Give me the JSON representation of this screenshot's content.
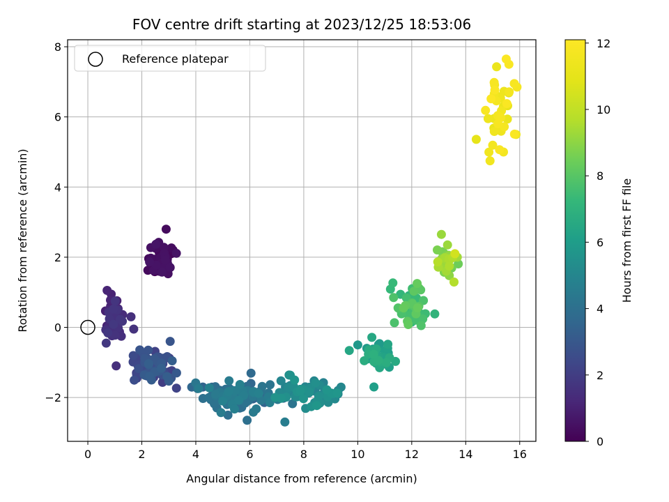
{
  "chart_data": {
    "type": "scatter",
    "title": "FOV centre drift starting at 2023/12/25 18:53:06",
    "xlabel": "Angular distance from reference (arcmin)",
    "ylabel": "Rotation from reference (arcmin)",
    "colorbar_label": "Hours from first FF file",
    "xlim": [
      -0.75,
      16.6
    ],
    "ylim": [
      -3.25,
      8.2
    ],
    "clim": [
      0,
      12.1
    ],
    "xticks": [
      "0",
      "2",
      "4",
      "6",
      "8",
      "10",
      "12",
      "14",
      "16"
    ],
    "yticks": [
      "−2",
      "0",
      "2",
      "4",
      "6",
      "8"
    ],
    "colorbar_ticks": [
      "0",
      "2",
      "4",
      "6",
      "8",
      "10",
      "12"
    ],
    "grid": true,
    "colormap": "viridis",
    "legend": {
      "position": "top-left",
      "entries": [
        "Reference platepar"
      ]
    },
    "reference_point": {
      "x": 0,
      "y": 0
    },
    "clusters": [
      {
        "x": 2.7,
        "y": 1.9,
        "sx": 0.4,
        "sy": 0.35,
        "n": 60,
        "t0": 0.1,
        "t1": 0.6
      },
      {
        "x": 0.9,
        "y": 0.2,
        "sx": 0.3,
        "sy": 0.45,
        "n": 45,
        "t0": 0.9,
        "t1": 1.8
      },
      {
        "x": 2.5,
        "y": -1.1,
        "sx": 0.6,
        "sy": 0.35,
        "n": 70,
        "t0": 2.0,
        "t1": 3.3
      },
      {
        "x": 5.5,
        "y": -1.95,
        "sx": 1.1,
        "sy": 0.3,
        "n": 110,
        "t0": 3.4,
        "t1": 4.8
      },
      {
        "x": 8.2,
        "y": -1.8,
        "sx": 0.9,
        "sy": 0.3,
        "n": 60,
        "t0": 4.8,
        "t1": 5.7
      },
      {
        "x": 10.6,
        "y": -0.7,
        "sx": 0.5,
        "sy": 0.35,
        "n": 40,
        "t0": 5.8,
        "t1": 6.9
      },
      {
        "x": 12.0,
        "y": 0.6,
        "sx": 0.5,
        "sy": 0.45,
        "n": 45,
        "t0": 7.0,
        "t1": 8.3
      },
      {
        "x": 13.3,
        "y": 1.8,
        "sx": 0.3,
        "sy": 0.35,
        "n": 35,
        "t0": 8.4,
        "t1": 9.7
      },
      {
        "x": 15.2,
        "y": 6.1,
        "sx": 0.45,
        "sy": 0.7,
        "n": 35,
        "t0": 11.0,
        "t1": 12.0
      }
    ],
    "extra_points": [
      {
        "x": 2.9,
        "y": 2.8,
        "t": 0.3
      },
      {
        "x": 1.6,
        "y": 0.3,
        "t": 1.5
      },
      {
        "x": 1.7,
        "y": -0.05,
        "t": 1.6
      },
      {
        "x": 1.05,
        "y": -1.1,
        "t": 1.5
      },
      {
        "x": 3.05,
        "y": -0.4,
        "t": 2.9
      },
      {
        "x": 1.8,
        "y": -1.3,
        "t": 2.0
      },
      {
        "x": 5.9,
        "y": -2.65,
        "t": 4.0
      },
      {
        "x": 7.3,
        "y": -2.7,
        "t": 4.6
      },
      {
        "x": 10.0,
        "y": -0.5,
        "t": 5.8
      },
      {
        "x": 10.6,
        "y": -1.7,
        "t": 6.1
      },
      {
        "x": 12.2,
        "y": 1.25,
        "t": 8.3
      },
      {
        "x": 13.1,
        "y": 2.65,
        "t": 9.2
      },
      {
        "x": 13.6,
        "y": 2.1,
        "t": 10.4
      },
      {
        "x": 14.9,
        "y": 4.75,
        "t": 11.5
      },
      {
        "x": 15.4,
        "y": 5.0,
        "t": 11.6
      },
      {
        "x": 15.5,
        "y": 7.65,
        "t": 12.0
      },
      {
        "x": 15.6,
        "y": 7.5,
        "t": 11.9
      },
      {
        "x": 15.8,
        "y": 6.95,
        "t": 11.8
      },
      {
        "x": 15.9,
        "y": 6.85,
        "t": 11.7
      }
    ]
  }
}
